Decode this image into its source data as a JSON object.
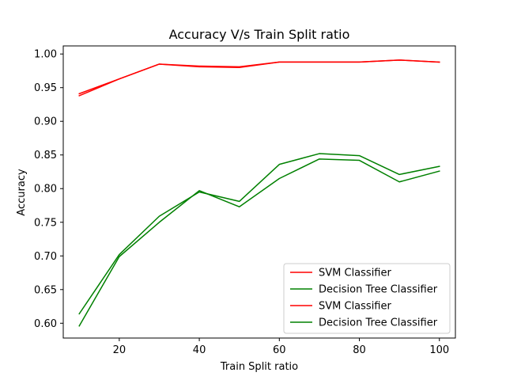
{
  "chart_data": {
    "type": "line",
    "title": "Accuracy V/s Train Split ratio",
    "xlabel": "Train Split ratio",
    "ylabel": "Accuracy",
    "xlim": [
      6,
      104
    ],
    "ylim": [
      0.578,
      1.012
    ],
    "xticks": [
      20,
      40,
      60,
      80,
      100
    ],
    "xtick_labels": [
      "20",
      "40",
      "60",
      "80",
      "100"
    ],
    "yticks": [
      0.6,
      0.65,
      0.7,
      0.75,
      0.8,
      0.85,
      0.9,
      0.95,
      1.0
    ],
    "ytick_labels": [
      "0.60",
      "0.65",
      "0.70",
      "0.75",
      "0.80",
      "0.85",
      "0.90",
      "0.95",
      "1.00"
    ],
    "grid": false,
    "legend_position": "lower-right",
    "x": [
      10,
      20,
      30,
      40,
      50,
      60,
      70,
      80,
      90,
      100
    ],
    "series": [
      {
        "name": "SVM Classifier",
        "color": "#ff0000",
        "values": [
          0.941,
          0.963,
          0.985,
          0.982,
          0.981,
          0.988,
          0.988,
          0.988,
          0.991,
          0.988
        ]
      },
      {
        "name": "Decision Tree Classifier",
        "color": "#008000",
        "values": [
          0.614,
          0.702,
          0.759,
          0.795,
          0.781,
          0.836,
          0.852,
          0.849,
          0.821,
          0.833
        ]
      },
      {
        "name": "SVM Classifier",
        "color": "#ff0000",
        "values": [
          0.938,
          0.963,
          0.985,
          0.981,
          0.98,
          0.988,
          0.988,
          0.988,
          0.991,
          0.988
        ]
      },
      {
        "name": "Decision Tree Classifier",
        "color": "#008000",
        "values": [
          0.596,
          0.699,
          0.75,
          0.797,
          0.773,
          0.815,
          0.844,
          0.842,
          0.81,
          0.826
        ]
      }
    ]
  }
}
